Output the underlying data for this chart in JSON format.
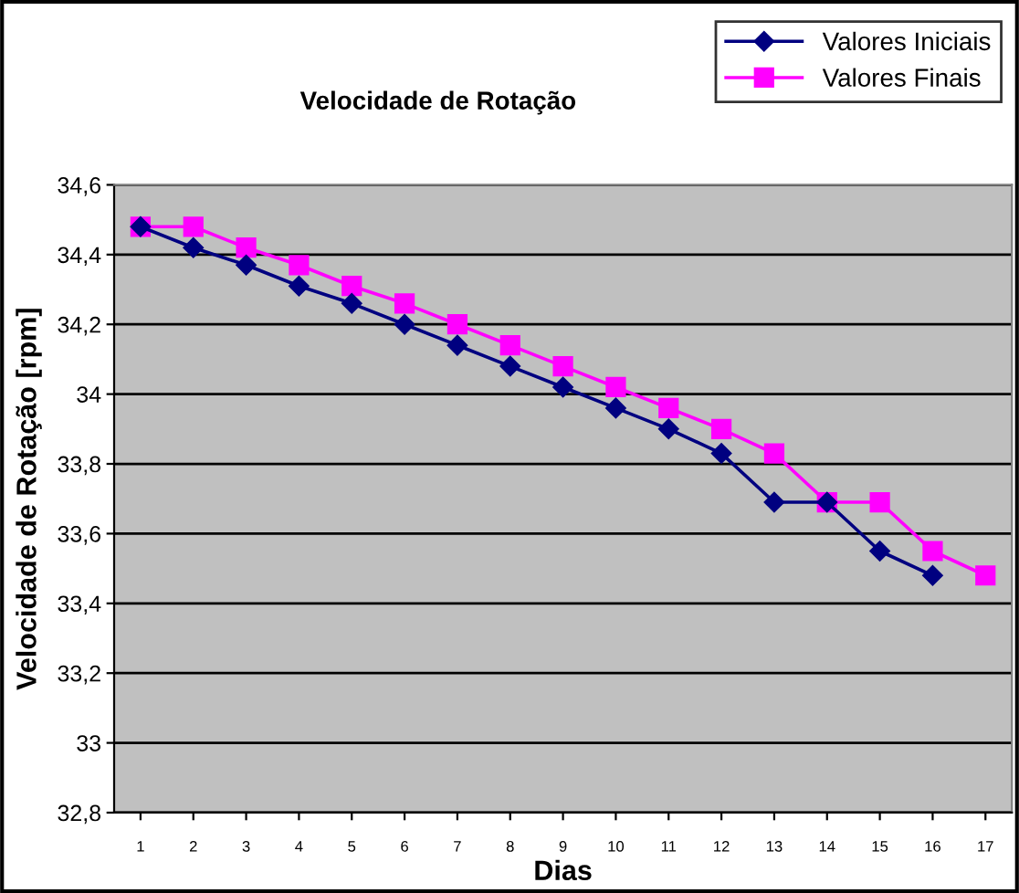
{
  "chart_data": {
    "type": "line",
    "title": "Velocidade de Rotação",
    "xlabel": "Dias",
    "ylabel": "Velocidade de Rotação [rpm]",
    "categories": [
      "1",
      "2",
      "3",
      "4",
      "5",
      "6",
      "7",
      "8",
      "9",
      "10",
      "11",
      "12",
      "13",
      "14",
      "15",
      "16",
      "17"
    ],
    "series": [
      {
        "name": "Valores Iniciais",
        "color": "#000080",
        "marker": "diamond",
        "values": [
          34.48,
          34.42,
          34.37,
          34.31,
          34.26,
          34.2,
          34.14,
          34.08,
          34.02,
          33.96,
          33.9,
          33.83,
          33.69,
          33.69,
          33.55,
          33.48,
          null
        ]
      },
      {
        "name": "Valores Finais",
        "color": "#ff00ff",
        "marker": "square",
        "values": [
          34.48,
          34.48,
          34.42,
          34.37,
          34.31,
          34.26,
          34.2,
          34.14,
          34.08,
          34.02,
          33.96,
          33.9,
          33.83,
          33.69,
          33.69,
          33.55,
          33.48
        ]
      }
    ],
    "ylim": [
      32.8,
      34.6
    ],
    "yticks": [
      {
        "value": 32.8,
        "label": "32,8"
      },
      {
        "value": 33,
        "label": "33"
      },
      {
        "value": 33.2,
        "label": "33,2"
      },
      {
        "value": 33.4,
        "label": "33,4"
      },
      {
        "value": 33.6,
        "label": "33,6"
      },
      {
        "value": 33.8,
        "label": "33,8"
      },
      {
        "value": 34,
        "label": "34"
      },
      {
        "value": 34.2,
        "label": "34,2"
      },
      {
        "value": 34.4,
        "label": "34,4"
      },
      {
        "value": 34.6,
        "label": "34,6"
      }
    ],
    "grid": "y",
    "legend": "top right",
    "line_style": "solid"
  }
}
